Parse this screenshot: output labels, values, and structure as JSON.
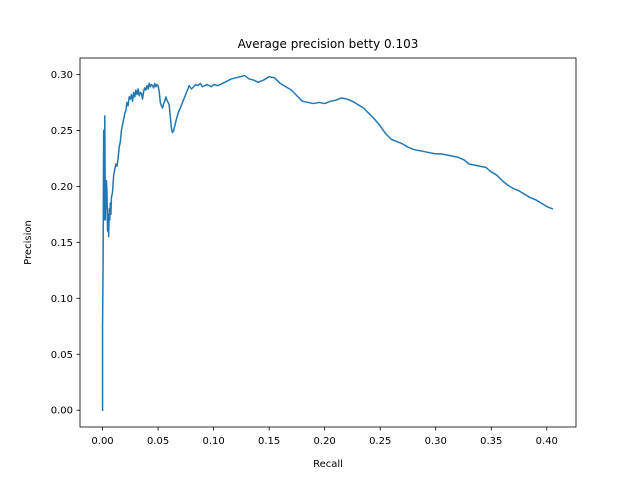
{
  "chart_data": {
    "type": "line",
    "title": "Average precision betty 0.103",
    "xlabel": "Recall",
    "ylabel": "Precision",
    "xlim": [
      -0.0203,
      0.4263
    ],
    "ylim": [
      -0.015,
      0.3147
    ],
    "x_ticks": [
      0.0,
      0.05,
      0.1,
      0.15,
      0.2,
      0.25,
      0.3,
      0.35,
      0.4
    ],
    "x_tick_labels": [
      "0.00",
      "0.05",
      "0.10",
      "0.15",
      "0.20",
      "0.25",
      "0.30",
      "0.35",
      "0.40"
    ],
    "y_ticks": [
      0.0,
      0.05,
      0.1,
      0.15,
      0.2,
      0.25,
      0.3
    ],
    "y_tick_labels": [
      "0.00",
      "0.05",
      "0.10",
      "0.15",
      "0.20",
      "0.25",
      "0.30"
    ],
    "grid": false,
    "line_color": "#1f77b4",
    "series": [
      {
        "x": [
          0.0,
          0.0,
          0.0005,
          0.001,
          0.0012,
          0.0015,
          0.0018,
          0.002,
          0.0025,
          0.003,
          0.0032,
          0.0035,
          0.004,
          0.0045,
          0.005,
          0.0055,
          0.006,
          0.0065,
          0.007,
          0.0075,
          0.008,
          0.009,
          0.01,
          0.011,
          0.012,
          0.013,
          0.014,
          0.015,
          0.016,
          0.017,
          0.018,
          0.019,
          0.02,
          0.021,
          0.022,
          0.023,
          0.024,
          0.025,
          0.026,
          0.027,
          0.028,
          0.029,
          0.03,
          0.031,
          0.032,
          0.033,
          0.034,
          0.035,
          0.036,
          0.037,
          0.038,
          0.039,
          0.04,
          0.041,
          0.042,
          0.043,
          0.044,
          0.045,
          0.046,
          0.047,
          0.048,
          0.049,
          0.05,
          0.051,
          0.052,
          0.053,
          0.054,
          0.055,
          0.056,
          0.057,
          0.058,
          0.059,
          0.06,
          0.061,
          0.062,
          0.063,
          0.064,
          0.065,
          0.066,
          0.067,
          0.068,
          0.069,
          0.07,
          0.072,
          0.074,
          0.076,
          0.078,
          0.08,
          0.082,
          0.084,
          0.086,
          0.088,
          0.09,
          0.092,
          0.094,
          0.096,
          0.098,
          0.1,
          0.104,
          0.108,
          0.112,
          0.116,
          0.12,
          0.124,
          0.128,
          0.132,
          0.136,
          0.14,
          0.145,
          0.15,
          0.155,
          0.16,
          0.165,
          0.17,
          0.175,
          0.18,
          0.185,
          0.19,
          0.195,
          0.2,
          0.205,
          0.21,
          0.215,
          0.22,
          0.225,
          0.23,
          0.235,
          0.24,
          0.245,
          0.25,
          0.255,
          0.26,
          0.265,
          0.27,
          0.275,
          0.28,
          0.285,
          0.29,
          0.295,
          0.3,
          0.305,
          0.31,
          0.315,
          0.32,
          0.325,
          0.33,
          0.335,
          0.34,
          0.345,
          0.35,
          0.355,
          0.36,
          0.365,
          0.37,
          0.375,
          0.38,
          0.385,
          0.39,
          0.395,
          0.4,
          0.405
        ],
        "y": [
          0.0,
          0.075,
          0.135,
          0.25,
          0.17,
          0.24,
          0.19,
          0.263,
          0.17,
          0.205,
          0.18,
          0.205,
          0.195,
          0.16,
          0.175,
          0.155,
          0.18,
          0.17,
          0.185,
          0.175,
          0.19,
          0.195,
          0.21,
          0.215,
          0.22,
          0.218,
          0.225,
          0.235,
          0.24,
          0.25,
          0.255,
          0.26,
          0.265,
          0.268,
          0.275,
          0.272,
          0.28,
          0.278,
          0.282,
          0.276,
          0.284,
          0.28,
          0.286,
          0.282,
          0.287,
          0.281,
          0.284,
          0.283,
          0.278,
          0.285,
          0.288,
          0.286,
          0.29,
          0.287,
          0.292,
          0.289,
          0.291,
          0.29,
          0.288,
          0.292,
          0.289,
          0.291,
          0.29,
          0.285,
          0.275,
          0.272,
          0.27,
          0.274,
          0.276,
          0.28,
          0.277,
          0.275,
          0.273,
          0.262,
          0.252,
          0.248,
          0.25,
          0.254,
          0.258,
          0.262,
          0.265,
          0.268,
          0.27,
          0.275,
          0.28,
          0.285,
          0.29,
          0.287,
          0.289,
          0.291,
          0.29,
          0.292,
          0.289,
          0.29,
          0.291,
          0.29,
          0.289,
          0.291,
          0.29,
          0.292,
          0.294,
          0.296,
          0.297,
          0.298,
          0.299,
          0.296,
          0.295,
          0.293,
          0.295,
          0.298,
          0.297,
          0.292,
          0.289,
          0.286,
          0.281,
          0.276,
          0.275,
          0.274,
          0.275,
          0.274,
          0.276,
          0.277,
          0.279,
          0.278,
          0.276,
          0.273,
          0.27,
          0.265,
          0.26,
          0.254,
          0.247,
          0.242,
          0.24,
          0.238,
          0.235,
          0.233,
          0.232,
          0.231,
          0.23,
          0.229,
          0.229,
          0.228,
          0.227,
          0.226,
          0.224,
          0.22,
          0.219,
          0.218,
          0.217,
          0.213,
          0.21,
          0.205,
          0.201,
          0.198,
          0.196,
          0.193,
          0.19,
          0.188,
          0.185,
          0.182,
          0.18
        ]
      }
    ]
  }
}
